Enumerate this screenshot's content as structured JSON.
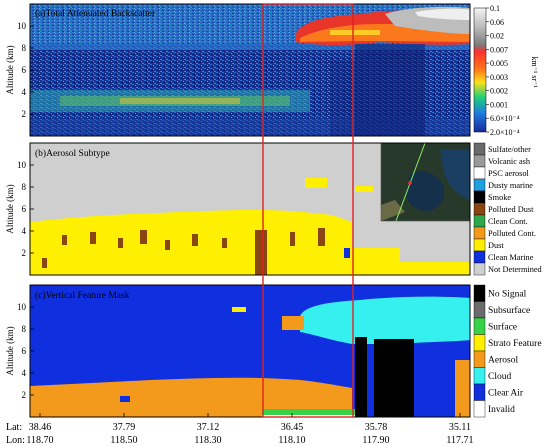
{
  "chart_data": [
    {
      "type": "heatmap",
      "title": "(a)Total Attenuated Backscatter",
      "ylabel": "Altitude (km)",
      "yticks": [
        "2",
        "4",
        "6",
        "8",
        "10"
      ],
      "ylim": [
        0,
        12
      ],
      "colorbar": {
        "unit": "km⁻¹ sr⁻¹",
        "ticks": [
          "0.1",
          "0.06",
          "0.02",
          "0.007",
          "0.005",
          "0.003",
          "0.002",
          "0.001",
          "6.0×10⁻⁴",
          "2.0×10⁻⁴"
        ],
        "colors": [
          "#f5f5f5",
          "#cfcfcf",
          "#a8a8a8",
          "#7a7a7a",
          "#ff2e2e",
          "#ff7a1a",
          "#ffe01a",
          "#1ed07a",
          "#1f7ae0",
          "#1a2a9a"
        ]
      },
      "layers": [
        {
          "name": "cirrus",
          "x_range": [
            0.49,
            1.0
          ],
          "alt_range": [
            8.8,
            11.6
          ]
        },
        {
          "name": "boundary aerosol",
          "x_range": [
            0.0,
            0.62
          ],
          "alt_range": [
            1.5,
            4.0
          ]
        }
      ]
    },
    {
      "type": "heatmap",
      "title": "(b)Aerosol Subtype",
      "ylabel": "Altitude (km)",
      "yticks": [
        "2",
        "4",
        "6",
        "8",
        "10"
      ],
      "ylim": [
        0,
        12
      ],
      "legend": [
        {
          "label": "Sulfate/other",
          "color": "#6a6a6a"
        },
        {
          "label": "Volcanic ash",
          "color": "#9a9a9a"
        },
        {
          "label": "PSC aerosol",
          "color": "#ffffff"
        },
        {
          "label": "Dusty marine",
          "color": "#1f9fe0"
        },
        {
          "label": "Smoke",
          "color": "#000000"
        },
        {
          "label": "Polluted Dust",
          "color": "#8b4513"
        },
        {
          "label": "Clean Cont.",
          "color": "#2ea84a"
        },
        {
          "label": "Polluted Cont.",
          "color": "#f39a1c"
        },
        {
          "label": "Dust",
          "color": "#ffef00"
        },
        {
          "label": "Clean Marine",
          "color": "#1030e0"
        },
        {
          "label": "Not Determined",
          "color": "#cfcfcf"
        }
      ]
    },
    {
      "type": "heatmap",
      "title": "(c)Vertical Feature Mask",
      "ylabel": "Altitude (km)",
      "yticks": [
        "2",
        "4",
        "6",
        "8",
        "10"
      ],
      "ylim": [
        0,
        12
      ],
      "legend": [
        {
          "label": "No Signal",
          "color": "#000000"
        },
        {
          "label": "Subsurface",
          "color": "#6b6b6b"
        },
        {
          "label": "Surface",
          "color": "#39d14a"
        },
        {
          "label": "Strato Feature",
          "color": "#ffee00"
        },
        {
          "label": "Aerosol",
          "color": "#f39a1c"
        },
        {
          "label": "Cloud",
          "color": "#36f0f0"
        },
        {
          "label": "Clear Air",
          "color": "#1030e0"
        },
        {
          "label": "Invalid",
          "color": "#ffffff"
        }
      ]
    }
  ],
  "axis": {
    "lat_label": "Lat:",
    "lon_label": "Lon:",
    "lat": [
      "38.46",
      "37.79",
      "37.12",
      "36.45",
      "35.78",
      "35.11"
    ],
    "lon": [
      "118.70",
      "118.50",
      "118.30",
      "118.10",
      "117.90",
      "117.71"
    ]
  }
}
